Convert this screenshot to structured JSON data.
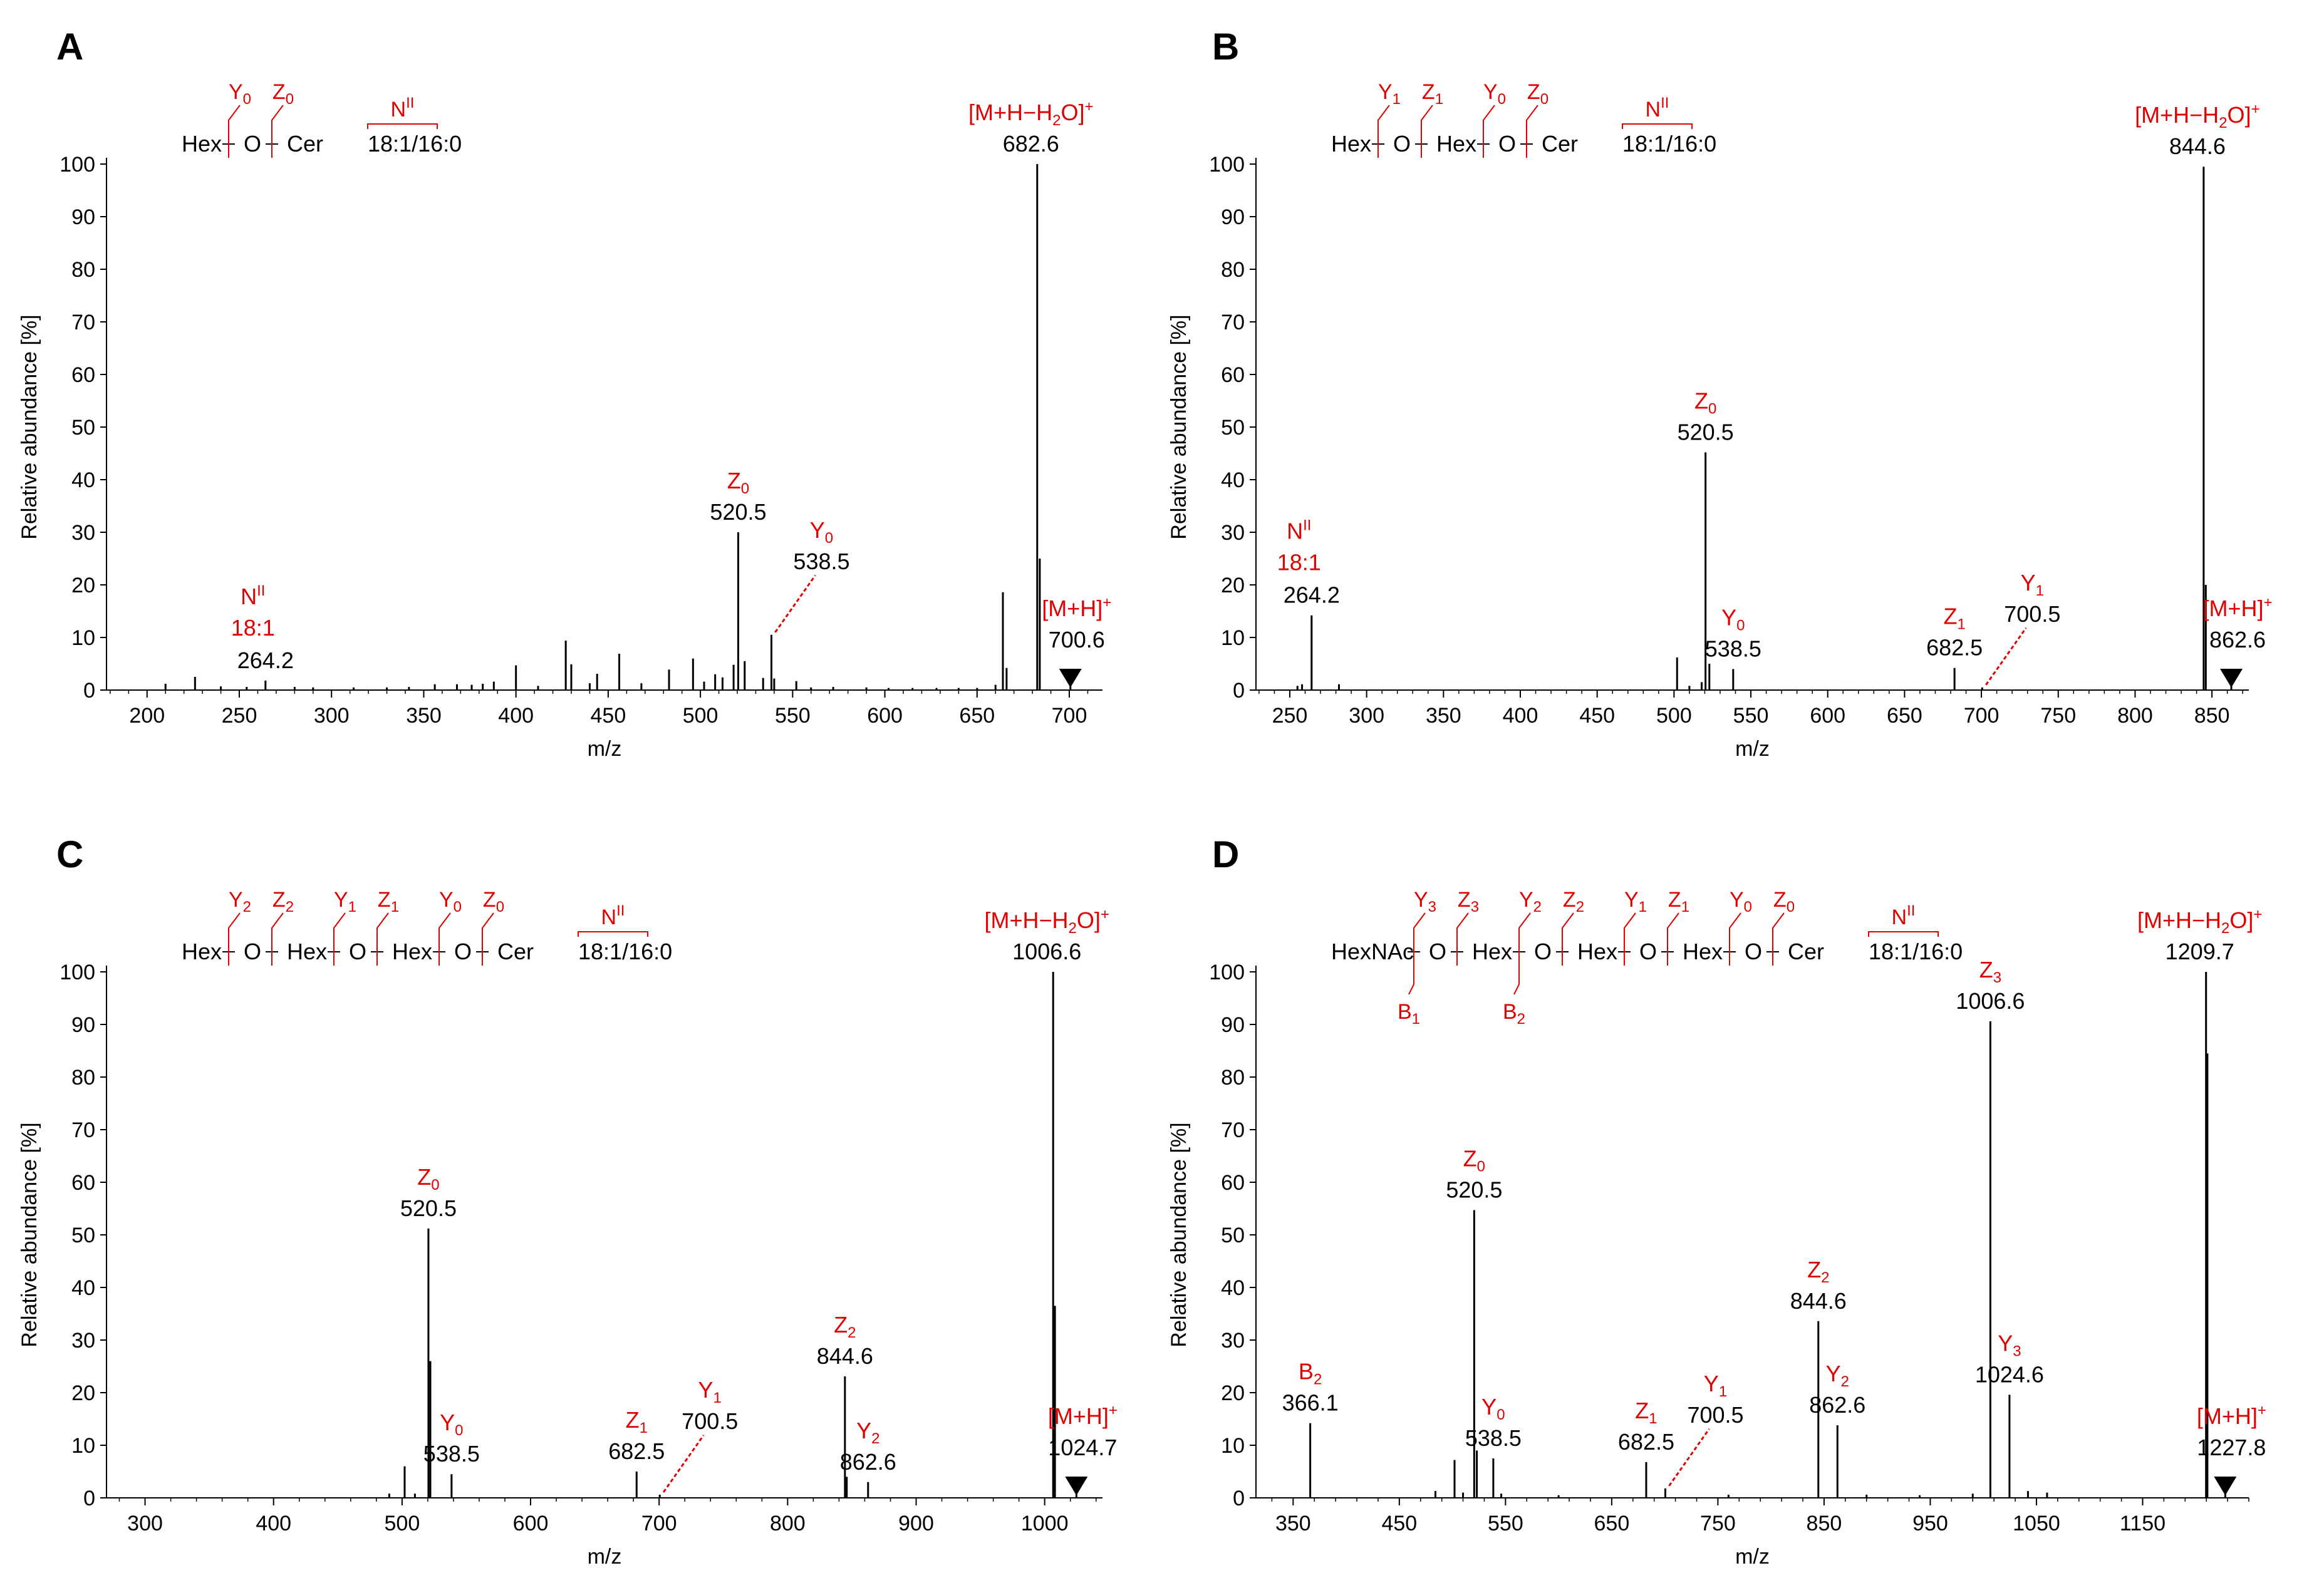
{
  "colors": {
    "ion": "#e00000",
    "spectrum": "#000000",
    "frag_line": "#e00000"
  },
  "chart_data": [
    {
      "panel": "A",
      "type": "bar",
      "xlabel": "m/z",
      "ylabel": "Relative abundance [%]",
      "xlim": [
        178,
        718
      ],
      "ylim": [
        0,
        100
      ],
      "xticks": [
        200,
        250,
        300,
        350,
        400,
        450,
        500,
        550,
        600,
        650,
        700
      ],
      "yticks": [
        0,
        10,
        20,
        30,
        40,
        50,
        60,
        70,
        80,
        90,
        100
      ],
      "structure": {
        "units": [
          "Hex",
          "O",
          "Cer",
          "18:1/16:0"
        ],
        "cleavages": [
          {
            "letter": "Y",
            "sub": "0",
            "after": 0
          },
          {
            "letter": "Z",
            "sub": "0",
            "after": 1
          }
        ],
        "n_label": "N",
        "n_sup": "II"
      },
      "peaks": [
        [
          210,
          1.2
        ],
        [
          226,
          2.5
        ],
        [
          240,
          0.7
        ],
        [
          254,
          0.6
        ],
        [
          264.2,
          1.8
        ],
        [
          280,
          0.6
        ],
        [
          290,
          0.5
        ],
        [
          312,
          0.5
        ],
        [
          330,
          0.5
        ],
        [
          342,
          0.6
        ],
        [
          356,
          1.1
        ],
        [
          368,
          1.1
        ],
        [
          376,
          1.0
        ],
        [
          382,
          1.2
        ],
        [
          388,
          1.6
        ],
        [
          400,
          4.7
        ],
        [
          412,
          0.8
        ],
        [
          427,
          9.4
        ],
        [
          430,
          4.9
        ],
        [
          440,
          1.3
        ],
        [
          444,
          3.1
        ],
        [
          456,
          6.9
        ],
        [
          468,
          1.3
        ],
        [
          483,
          3.9
        ],
        [
          496,
          6.0
        ],
        [
          502,
          1.6
        ],
        [
          508,
          3.0
        ],
        [
          512,
          2.4
        ],
        [
          518,
          4.8
        ],
        [
          520.5,
          30
        ],
        [
          524,
          5.5
        ],
        [
          534,
          2.3
        ],
        [
          538.5,
          10.5
        ],
        [
          540,
          2.2
        ],
        [
          552,
          1.7
        ],
        [
          560,
          0.5
        ],
        [
          572,
          0.6
        ],
        [
          590,
          0.5
        ],
        [
          602,
          0.4
        ],
        [
          615,
          0.4
        ],
        [
          628,
          0.4
        ],
        [
          640,
          0.4
        ],
        [
          650,
          0.4
        ],
        [
          660,
          1.0
        ],
        [
          664,
          18.6
        ],
        [
          666,
          4.2
        ],
        [
          682.6,
          100
        ],
        [
          684,
          25
        ],
        [
          700.6,
          2.0
        ]
      ],
      "annotations": [
        {
          "ion": "Y",
          "sub": "0",
          "mz": "538.5",
          "x": 538.5,
          "y": 10.5,
          "dashed": true
        },
        {
          "ion": "Z",
          "sub": "0",
          "mz": "520.5",
          "x": 520.5,
          "y": 30
        },
        {
          "ion": "[M+H−H",
          "sub": "2",
          "tail": "O]",
          "sup": "+",
          "mz": "682.6",
          "x": 682.6,
          "y": 100
        },
        {
          "ion": "[M+H]",
          "sup": "+",
          "mz": "700.6",
          "x": 700.6,
          "y": 0,
          "precursor": true
        },
        {
          "ion": "N",
          "sup": "II",
          "line2": "18:1",
          "mz": "264.2",
          "x": 264.2,
          "y": 1.8
        }
      ]
    },
    {
      "panel": "B",
      "type": "bar",
      "xlabel": "m/z",
      "ylabel": "Relative abundance [%]",
      "xlim": [
        228,
        874
      ],
      "ylim": [
        0,
        100
      ],
      "xticks": [
        250,
        300,
        350,
        400,
        450,
        500,
        550,
        600,
        650,
        700,
        750,
        800,
        850
      ],
      "yticks": [
        0,
        10,
        20,
        30,
        40,
        50,
        60,
        70,
        80,
        90,
        100
      ],
      "structure": {
        "units": [
          "Hex",
          "O",
          "Hex",
          "O",
          "Cer",
          "18:1/16:0"
        ],
        "cleavages": [
          {
            "letter": "Y",
            "sub": "1",
            "after": 0
          },
          {
            "letter": "Z",
            "sub": "1",
            "after": 1
          },
          {
            "letter": "Y",
            "sub": "0",
            "after": 2
          },
          {
            "letter": "Z",
            "sub": "0",
            "after": 3
          }
        ],
        "n_label": "N",
        "n_sup": "II"
      },
      "peaks": [
        [
          255,
          0.8
        ],
        [
          258,
          1.1
        ],
        [
          264.2,
          14.2
        ],
        [
          282,
          1.1
        ],
        [
          502,
          6.2
        ],
        [
          510,
          0.8
        ],
        [
          518,
          1.5
        ],
        [
          520.5,
          45.2
        ],
        [
          523,
          5
        ],
        [
          538.5,
          4.0
        ],
        [
          682.5,
          4.2
        ],
        [
          700.5,
          0.5
        ],
        [
          844.6,
          99.5
        ],
        [
          846,
          20
        ],
        [
          862.6,
          1.0
        ]
      ],
      "annotations": [
        {
          "ion": "N",
          "sup": "II",
          "line2": "18:1",
          "mz": "264.2",
          "x": 264.2,
          "y": 14.2
        },
        {
          "ion": "Z",
          "sub": "0",
          "mz": "520.5",
          "x": 520.5,
          "y": 45.2
        },
        {
          "ion": "Y",
          "sub": "0",
          "mz": "538.5",
          "x": 538.5,
          "y": 4.0
        },
        {
          "ion": "Z",
          "sub": "1",
          "mz": "682.5",
          "x": 682.5,
          "y": 4.2
        },
        {
          "ion": "Y",
          "sub": "1",
          "mz": "700.5",
          "x": 700.5,
          "y": 0.5,
          "dashed": true
        },
        {
          "ion": "[M+H−H",
          "sub": "2",
          "tail": "O]",
          "sup": "+",
          "mz": "844.6",
          "x": 844.6,
          "y": 99.5
        },
        {
          "ion": "[M+H]",
          "sup": "+",
          "mz": "862.6",
          "x": 862.6,
          "y": 0,
          "precursor": true
        }
      ]
    },
    {
      "panel": "C",
      "type": "bar",
      "xlabel": "m/z",
      "ylabel": "Relative abundance [%]",
      "xlim": [
        270,
        1045
      ],
      "ylim": [
        0,
        100
      ],
      "xticks": [
        300,
        400,
        500,
        600,
        700,
        800,
        900,
        1000
      ],
      "yticks": [
        0,
        10,
        20,
        30,
        40,
        50,
        60,
        70,
        80,
        90,
        100
      ],
      "structure": {
        "units": [
          "Hex",
          "O",
          "Hex",
          "O",
          "Hex",
          "O",
          "Cer",
          "18:1/16:0"
        ],
        "cleavages": [
          {
            "letter": "Y",
            "sub": "2",
            "after": 0
          },
          {
            "letter": "Z",
            "sub": "2",
            "after": 1
          },
          {
            "letter": "Y",
            "sub": "1",
            "after": 2
          },
          {
            "letter": "Z",
            "sub": "1",
            "after": 3
          },
          {
            "letter": "Y",
            "sub": "0",
            "after": 4
          },
          {
            "letter": "Z",
            "sub": "0",
            "after": 5
          }
        ],
        "n_label": "N",
        "n_sup": "II"
      },
      "peaks": [
        [
          490,
          0.8
        ],
        [
          502,
          6.0
        ],
        [
          510,
          0.8
        ],
        [
          520.5,
          51.2
        ],
        [
          522,
          26
        ],
        [
          538.5,
          4.5
        ],
        [
          682.5,
          5.0
        ],
        [
          700.5,
          0.6
        ],
        [
          844.6,
          23.1
        ],
        [
          846,
          4
        ],
        [
          862.6,
          3.0
        ],
        [
          1006.6,
          100
        ],
        [
          1008,
          36.5
        ],
        [
          1024.7,
          0.8
        ]
      ],
      "annotations": [
        {
          "ion": "Z",
          "sub": "0",
          "mz": "520.5",
          "x": 520.5,
          "y": 51.2
        },
        {
          "ion": "Y",
          "sub": "0",
          "mz": "538.5",
          "x": 538.5,
          "y": 4.5
        },
        {
          "ion": "Z",
          "sub": "1",
          "mz": "682.5",
          "x": 682.5,
          "y": 5.0
        },
        {
          "ion": "Y",
          "sub": "1",
          "mz": "700.5",
          "x": 700.5,
          "y": 0.6,
          "dashed": true
        },
        {
          "ion": "Z",
          "sub": "2",
          "mz": "844.6",
          "x": 844.6,
          "y": 23.1
        },
        {
          "ion": "Y",
          "sub": "2",
          "mz": "862.6",
          "x": 862.6,
          "y": 3.0
        },
        {
          "ion": "[M+H−H",
          "sub": "2",
          "tail": "O]",
          "sup": "+",
          "mz": "1006.6",
          "x": 1006.6,
          "y": 100
        },
        {
          "ion": "[M+H]",
          "sup": "+",
          "mz": "1024.7",
          "x": 1024.7,
          "y": 0,
          "precursor": true
        }
      ]
    },
    {
      "panel": "D",
      "type": "bar",
      "xlabel": "m/z",
      "ylabel": "Relative abundance [%]",
      "xlim": [
        315,
        1250
      ],
      "ylim": [
        0,
        100
      ],
      "xticks": [
        350,
        450,
        550,
        650,
        750,
        850,
        950,
        1050,
        1150
      ],
      "yticks": [
        0,
        10,
        20,
        30,
        40,
        50,
        60,
        70,
        80,
        90,
        100
      ],
      "structure": {
        "units": [
          "HexNAc",
          "O",
          "Hex",
          "O",
          "Hex",
          "O",
          "Hex",
          "O",
          "Cer",
          "18:1/16:0"
        ],
        "cleavages": [
          {
            "letter": "Y",
            "sub": "3",
            "after": 0
          },
          {
            "letter": "Z",
            "sub": "3",
            "after": 1
          },
          {
            "letter": "Y",
            "sub": "2",
            "after": 2
          },
          {
            "letter": "Z",
            "sub": "2",
            "after": 3
          },
          {
            "letter": "Y",
            "sub": "1",
            "after": 4
          },
          {
            "letter": "Z",
            "sub": "1",
            "after": 5
          },
          {
            "letter": "Y",
            "sub": "0",
            "after": 6
          },
          {
            "letter": "Z",
            "sub": "0",
            "after": 7
          }
        ],
        "b_cleavages": [
          {
            "letter": "B",
            "sub": "1",
            "after": 0
          },
          {
            "letter": "B",
            "sub": "2",
            "after": 2
          }
        ],
        "n_label": "N",
        "n_sup": "II"
      },
      "peaks": [
        [
          366.1,
          14.2
        ],
        [
          484,
          1.3
        ],
        [
          502,
          7.2
        ],
        [
          510,
          1.0
        ],
        [
          520.5,
          54.7
        ],
        [
          523,
          9
        ],
        [
          538.5,
          7.5
        ],
        [
          546,
          0.8
        ],
        [
          600,
          0.5
        ],
        [
          682.5,
          6.8
        ],
        [
          700.5,
          1.8
        ],
        [
          760,
          0.6
        ],
        [
          844.6,
          33.6
        ],
        [
          862.6,
          13.8
        ],
        [
          890,
          0.6
        ],
        [
          940,
          0.5
        ],
        [
          990,
          0.8
        ],
        [
          1006.6,
          90.6
        ],
        [
          1024.6,
          19.6
        ],
        [
          1042,
          1.3
        ],
        [
          1060,
          1.0
        ],
        [
          1209.7,
          100
        ],
        [
          1211,
          84.5
        ],
        [
          1227.8,
          1.0
        ]
      ],
      "annotations": [
        {
          "ion": "B",
          "sub": "2",
          "mz": "366.1",
          "x": 366.1,
          "y": 14.2
        },
        {
          "ion": "Z",
          "sub": "0",
          "mz": "520.5",
          "x": 520.5,
          "y": 54.7
        },
        {
          "ion": "Y",
          "sub": "0",
          "mz": "538.5",
          "x": 538.5,
          "y": 7.5
        },
        {
          "ion": "Z",
          "sub": "1",
          "mz": "682.5",
          "x": 682.5,
          "y": 6.8
        },
        {
          "ion": "Y",
          "sub": "1",
          "mz": "700.5",
          "x": 700.5,
          "y": 1.8,
          "dashed": true
        },
        {
          "ion": "Z",
          "sub": "2",
          "mz": "844.6",
          "x": 844.6,
          "y": 33.6
        },
        {
          "ion": "Y",
          "sub": "2",
          "mz": "862.6",
          "x": 862.6,
          "y": 13.8
        },
        {
          "ion": "Z",
          "sub": "3",
          "mz": "1006.6",
          "x": 1006.6,
          "y": 90.6
        },
        {
          "ion": "Y",
          "sub": "3",
          "mz": "1024.6",
          "x": 1024.6,
          "y": 19.6
        },
        {
          "ion": "[M+H−H",
          "sub": "2",
          "tail": "O]",
          "sup": "+",
          "mz": "1209.7",
          "x": 1209.7,
          "y": 100
        },
        {
          "ion": "[M+H]",
          "sup": "+",
          "mz": "1227.8",
          "x": 1227.8,
          "y": 0,
          "precursor": true
        }
      ]
    }
  ]
}
